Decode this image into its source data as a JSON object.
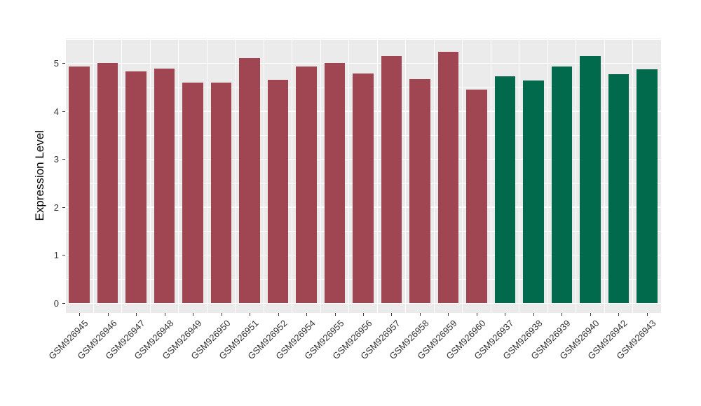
{
  "chart_data": {
    "type": "bar",
    "title": "",
    "xlabel": "",
    "ylabel": "Expression Level",
    "ylim": [
      0,
      5.5
    ],
    "yticks": [
      0,
      1,
      2,
      3,
      4,
      5
    ],
    "grid": "major+minor horizontal and vertical, white on gray panel",
    "legend_position": "none",
    "x_tick_label_rotation": 45,
    "categories": [
      "GSM926945",
      "GSM926946",
      "GSM926947",
      "GSM926948",
      "GSM926949",
      "GSM926950",
      "GSM926951",
      "GSM926952",
      "GSM926954",
      "GSM926955",
      "GSM926956",
      "GSM926957",
      "GSM926958",
      "GSM926959",
      "GSM926960",
      "GSM926937",
      "GSM926938",
      "GSM926939",
      "GSM926940",
      "GSM926942",
      "GSM926943"
    ],
    "values": [
      4.93,
      5.0,
      4.82,
      4.88,
      4.59,
      4.59,
      5.1,
      4.65,
      4.93,
      5.0,
      4.78,
      5.15,
      4.67,
      5.23,
      4.44,
      4.72,
      4.63,
      4.92,
      5.14,
      4.76,
      4.87
    ],
    "bar_colors": [
      "#A04552",
      "#A04552",
      "#A04552",
      "#A04552",
      "#A04552",
      "#A04552",
      "#A04552",
      "#A04552",
      "#A04552",
      "#A04552",
      "#A04552",
      "#A04552",
      "#A04552",
      "#A04552",
      "#A04552",
      "#01694C",
      "#01694C",
      "#01694C",
      "#01694C",
      "#01694C",
      "#01694C"
    ],
    "group_colors": {
      "left_group": "#A04552",
      "right_group": "#01694C"
    },
    "panel_background": "#EBEBEB",
    "gridline_color": "#FFFFFF",
    "tick_color": "#333333",
    "tick_label_color": "#333333",
    "axis_title_color": "#000000"
  }
}
